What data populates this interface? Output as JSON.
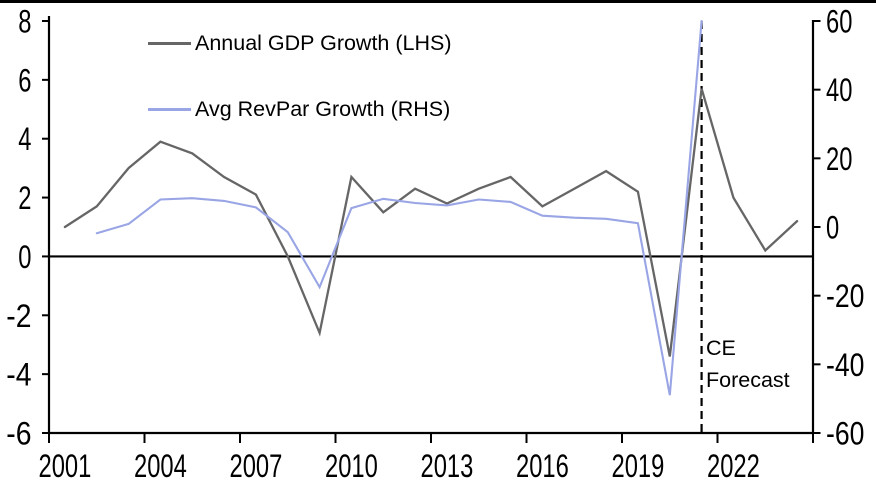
{
  "chart_data": {
    "type": "line",
    "title": "",
    "description": "Dual-axis line chart of Annual GDP Growth (left axis, %) and Average RevPar Growth (right axis, %) from 2001 to 2024, with a dashed vertical line marking the start of the CE Forecast period after 2021.",
    "x_axis": {
      "start_year": 2001,
      "end_year": 2024,
      "tick_interval": 3,
      "label_years": [
        2001,
        2004,
        2007,
        2010,
        2013,
        2016,
        2019,
        2022
      ]
    },
    "left_axis": {
      "min": -6,
      "max": 8,
      "ticks": [
        8,
        6,
        4,
        2,
        0,
        -2,
        -4,
        -6
      ]
    },
    "right_axis": {
      "min": -60,
      "max": 60,
      "ticks": [
        60,
        40,
        20,
        0,
        -20,
        -40,
        -60
      ]
    },
    "zero_line": true,
    "series": [
      {
        "name": "Annual GDP Growth (LHS)",
        "axis": "left",
        "color": "#666666",
        "start_year": 2001,
        "values": [
          1.0,
          1.7,
          3.0,
          3.9,
          3.5,
          2.7,
          2.1,
          0.0,
          -2.6,
          2.7,
          1.5,
          2.3,
          1.8,
          2.3,
          2.7,
          1.7,
          2.3,
          2.9,
          2.2,
          -3.4,
          5.7,
          2.0,
          0.2,
          1.2
        ]
      },
      {
        "name": "Avg RevPar Growth (RHS)",
        "axis": "right",
        "color": "#99a5e5",
        "start_year": 2002,
        "values": [
          -1.8,
          0.9,
          8.0,
          8.4,
          7.6,
          5.7,
          -1.5,
          -17.5,
          5.5,
          8.2,
          7.0,
          6.3,
          8.0,
          7.3,
          3.3,
          2.7,
          2.4,
          1.1,
          -49.0,
          60.0
        ]
      }
    ],
    "forecast": {
      "line_year": 2021,
      "label_line1": "CE",
      "label_line2": "Forecast"
    },
    "legend_position": "top-left-inside"
  },
  "colors": {
    "background": "#ffffff",
    "axis": "#000000",
    "gdp_line": "#666666",
    "revpar_line": "#99a5e5"
  }
}
